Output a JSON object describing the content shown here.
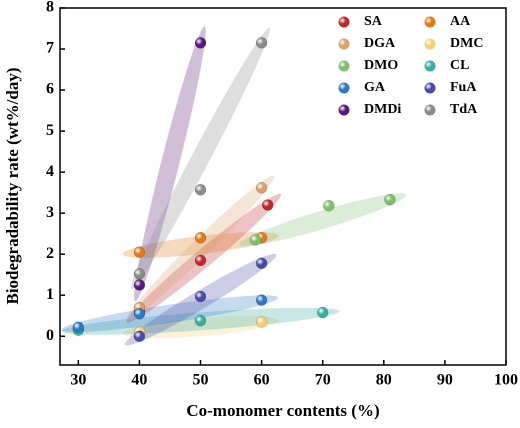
{
  "chart_data": {
    "type": "scatter",
    "x_label": "Co-monomer contents (%)",
    "y_label": "Biodegradability rate (wt%/day)",
    "xlim": [
      27,
      100
    ],
    "ylim": [
      -0.7,
      8
    ],
    "xticks": [
      30,
      40,
      50,
      60,
      70,
      80,
      90,
      100
    ],
    "yticks": [
      0,
      1,
      2,
      3,
      4,
      5,
      6,
      7,
      8
    ],
    "legend": "upper right",
    "series": [
      {
        "name": "SA",
        "color": "#c0282d",
        "x": [
          40,
          50,
          61
        ],
        "values": [
          0.6,
          1.85,
          3.2
        ]
      },
      {
        "name": "AA",
        "color": "#e07b1a",
        "x": [
          40,
          50,
          60
        ],
        "values": [
          2.05,
          2.4,
          2.4
        ]
      },
      {
        "name": "DGA",
        "color": "#d9a06a",
        "x": [
          40,
          60
        ],
        "values": [
          0.7,
          3.62
        ]
      },
      {
        "name": "DMC",
        "color": "#f2cf72",
        "x": [
          40,
          60
        ],
        "values": [
          0.1,
          0.35
        ]
      },
      {
        "name": "DMO",
        "color": "#7fbf6a",
        "x": [
          59,
          71,
          81
        ],
        "values": [
          2.35,
          3.18,
          3.33
        ]
      },
      {
        "name": "CL",
        "color": "#3aaea0",
        "x": [
          30,
          50,
          70
        ],
        "values": [
          0.15,
          0.38,
          0.58
        ]
      },
      {
        "name": "GA",
        "color": "#2f78c4",
        "x": [
          30,
          40,
          60
        ],
        "values": [
          0.22,
          0.55,
          0.88
        ]
      },
      {
        "name": "FuA",
        "color": "#4a4aa8",
        "x": [
          40,
          50,
          60
        ],
        "values": [
          0.0,
          0.97,
          1.78
        ]
      },
      {
        "name": "DMDi",
        "color": "#5b1a7a",
        "x": [
          40,
          50
        ],
        "values": [
          1.25,
          7.15
        ]
      },
      {
        "name": "TdA",
        "color": "#8a8a8a",
        "x": [
          40,
          50,
          60
        ],
        "values": [
          1.52,
          3.57,
          7.15
        ]
      }
    ]
  }
}
